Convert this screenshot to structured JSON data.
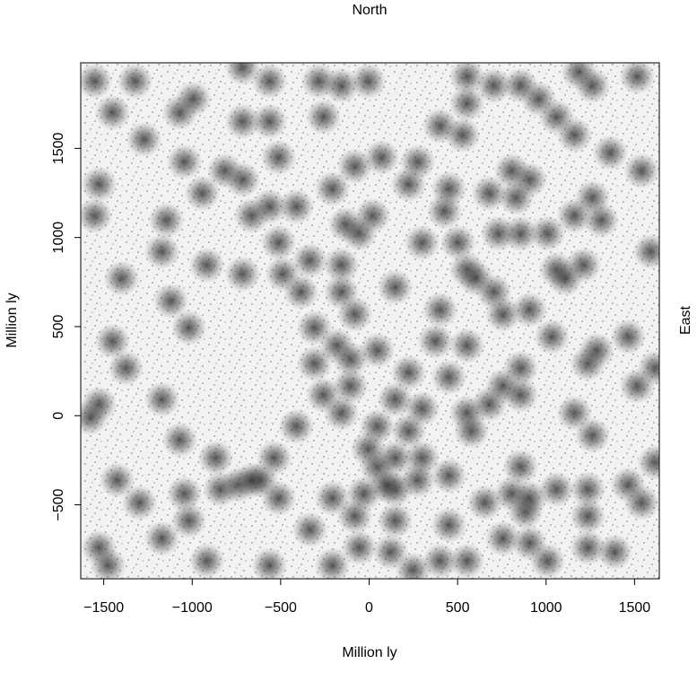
{
  "chart_data": {
    "type": "density-scatter",
    "title": "North",
    "right_label": "East",
    "xlabel": "Million ly",
    "ylabel": "Million ly",
    "xlim": [
      -1630,
      1640
    ],
    "ylim": [
      -915,
      1980
    ],
    "xticks": [
      {
        "value": -1500,
        "label": "−1500"
      },
      {
        "value": -1000,
        "label": "−1000"
      },
      {
        "value": -500,
        "label": "−500"
      },
      0,
      500,
      1000,
      1500
    ],
    "yticks": [
      {
        "value": -500,
        "label": "−500"
      },
      0,
      500,
      1000,
      1500
    ],
    "x": [
      -1551,
      -1323,
      -1450,
      -1272,
      -1070,
      -993,
      -1044,
      -943,
      -816,
      -715,
      -664,
      -1526,
      -1551,
      -1146,
      -1171,
      -917,
      -1399,
      -1120,
      -1019,
      -1450,
      -1374,
      -1526,
      -1576,
      -1171,
      -1070,
      -867,
      -841,
      -1424,
      -1298,
      -1044,
      -1019,
      -1171,
      -1526,
      -1475,
      -917,
      -715,
      -563,
      -715,
      -563,
      -512,
      -563,
      -512,
      -411,
      -487,
      -715,
      -385,
      -335,
      -309,
      -309,
      -182,
      -258,
      -411,
      -613,
      -537,
      -512,
      -208,
      -563,
      -335,
      -284,
      -157,
      -5,
      -258,
      -208,
      -132,
      -81,
      71,
      274,
      223,
      20,
      -56,
      -157,
      -157,
      -81,
      -106,
      -106,
      -157,
      46,
      223,
      147,
      299,
      426,
      451,
      502,
      553,
      401,
      375,
      553,
      603,
      705,
      730,
      679,
      806,
      907,
      831,
      856,
      1008,
      1059,
      1109,
      1211,
      1160,
      1262,
      1312,
      1363,
      1160,
      1059,
      958,
      856,
      705,
      553,
      553,
      528,
      401,
      1185,
      1262,
      1515,
      1540,
      1591,
      756,
      907,
      1033,
      856,
      679,
      756,
      856,
      553,
      451,
      578,
      299,
      46,
      223,
      299,
      147,
      -5,
      46,
      147,
      -30,
      -81,
      147,
      -56,
      -208,
      122,
      248,
      451,
      451,
      401,
      553,
      654,
      856,
      806,
      882,
      1059,
      1236,
      1236,
      1160,
      1262,
      1236,
      1287,
      1464,
      1515,
      1616,
      1464,
      1540,
      1616,
      1388,
      1236,
      1008,
      907,
      756,
      907,
      -740,
      -664,
      147,
      274,
      96
    ],
    "series": [
      {
        "color": "#2e2e2e",
        "values": [
          1877,
          1877,
          1701,
          1550,
          1701,
          1777,
          1424,
          1248,
          1374,
          1324,
          1122,
          1298,
          1122,
          1097,
          921,
          845,
          770,
          644,
          493,
          418,
          267,
          65,
          -10,
          91,
          -136,
          -237,
          -413,
          -362,
          -488,
          -438,
          -589,
          -689,
          -740,
          -840,
          -815,
          1953,
          1877,
          1651,
          1651,
          1449,
          1173,
          971,
          1173,
          795,
          795,
          694,
          871,
          493,
          292,
          393,
          116,
          -60,
          -362,
          -237,
          -463,
          -463,
          -840,
          -639,
          1877,
          1852,
          1877,
          1676,
          1273,
          1072,
          1399,
          1449,
          1424,
          1298,
          1122,
          1022,
          845,
          694,
          569,
          317,
          166,
          15,
          367,
          242,
          720,
          971,
          1147,
          1273,
          971,
          820,
          594,
          418,
          393,
          770,
          694,
          1022,
          1248,
          1374,
          1324,
          1223,
          1022,
          1022,
          820,
          770,
          845,
          1122,
          1223,
          1097,
          1475,
          1575,
          1676,
          1777,
          1852,
          1852,
          1903,
          1752,
          1575,
          1626,
          1928,
          1852,
          1903,
          1374,
          921,
          569,
          594,
          443,
          267,
          65,
          166,
          116,
          15,
          216,
          -86,
          40,
          -60,
          -86,
          -237,
          -237,
          -186,
          -287,
          -413,
          -438,
          -564,
          -589,
          -740,
          -840,
          -765,
          -866,
          -614,
          -337,
          -815,
          -815,
          -488,
          -287,
          -438,
          -539,
          -413,
          -564,
          -413,
          15,
          -111,
          292,
          367,
          443,
          166,
          267,
          -388,
          -488,
          -262,
          -765,
          -740,
          -815,
          -715,
          -689,
          -463,
          -388,
          -362,
          91,
          -362,
          -388
        ]
      }
    ]
  }
}
